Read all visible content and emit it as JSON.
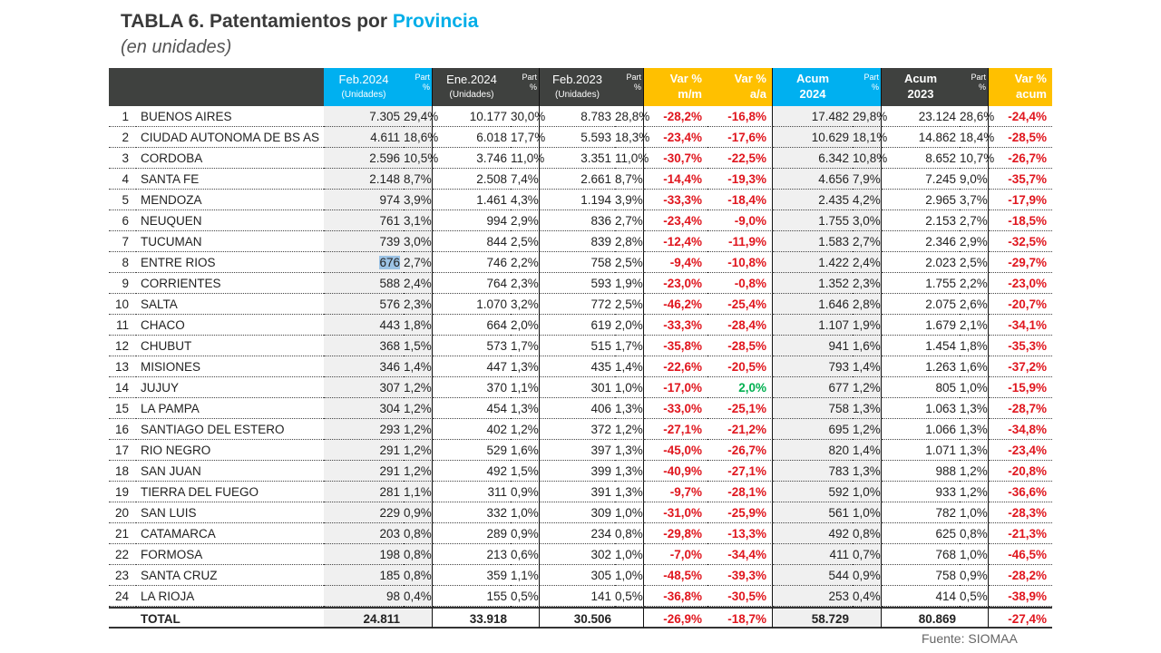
{
  "title": {
    "prefix": "TABLA 6. Patentamientos por ",
    "highlight": "Provincia"
  },
  "subtitle": "(en unidades)",
  "source": "Fuente: SIOMAA",
  "colors": {
    "blue": "#00b0f0",
    "orange": "#ffc000",
    "dark": "#3f413f",
    "negative": "#e0161e",
    "positive": "#00b050"
  },
  "headers": {
    "feb2024": "Feb.2024",
    "feb2024_sub": "(Unidades)",
    "ene2024": "Ene.2024",
    "ene2024_sub": "(Unidades)",
    "feb2023": "Feb.2023",
    "feb2023_sub": "(Unidades)",
    "part": "Part",
    "pct": "%",
    "var_mm_1": "Var %",
    "var_mm_2": "m/m",
    "var_aa_1": "Var %",
    "var_aa_2": "a/a",
    "acum2024_1": "Acum",
    "acum2024_2": "2024",
    "acum2023_1": "Acum",
    "acum2023_2": "2023",
    "var_acum_1": "Var %",
    "var_acum_2": "acum"
  },
  "rows": [
    [
      "1",
      "BUENOS AIRES",
      "7.305",
      "29,4%",
      "10.177",
      "30,0%",
      "8.783",
      "28,8%",
      "-28,2%",
      "-16,8%",
      "17.482",
      "29,8%",
      "23.124",
      "28,6%",
      "-24,4%"
    ],
    [
      "2",
      "CIUDAD AUTONOMA DE BS AS",
      "4.611",
      "18,6%",
      "6.018",
      "17,7%",
      "5.593",
      "18,3%",
      "-23,4%",
      "-17,6%",
      "10.629",
      "18,1%",
      "14.862",
      "18,4%",
      "-28,5%"
    ],
    [
      "3",
      "CORDOBA",
      "2.596",
      "10,5%",
      "3.746",
      "11,0%",
      "3.351",
      "11,0%",
      "-30,7%",
      "-22,5%",
      "6.342",
      "10,8%",
      "8.652",
      "10,7%",
      "-26,7%"
    ],
    [
      "4",
      "SANTA FE",
      "2.148",
      "8,7%",
      "2.508",
      "7,4%",
      "2.661",
      "8,7%",
      "-14,4%",
      "-19,3%",
      "4.656",
      "7,9%",
      "7.245",
      "9,0%",
      "-35,7%"
    ],
    [
      "5",
      "MENDOZA",
      "974",
      "3,9%",
      "1.461",
      "4,3%",
      "1.194",
      "3,9%",
      "-33,3%",
      "-18,4%",
      "2.435",
      "4,2%",
      "2.965",
      "3,7%",
      "-17,9%"
    ],
    [
      "6",
      "NEUQUEN",
      "761",
      "3,1%",
      "994",
      "2,9%",
      "836",
      "2,7%",
      "-23,4%",
      "-9,0%",
      "1.755",
      "3,0%",
      "2.153",
      "2,7%",
      "-18,5%"
    ],
    [
      "7",
      "TUCUMAN",
      "739",
      "3,0%",
      "844",
      "2,5%",
      "839",
      "2,8%",
      "-12,4%",
      "-11,9%",
      "1.583",
      "2,7%",
      "2.346",
      "2,9%",
      "-32,5%"
    ],
    [
      "8",
      "ENTRE RIOS",
      "676",
      "2,7%",
      "746",
      "2,2%",
      "758",
      "2,5%",
      "-9,4%",
      "-10,8%",
      "1.422",
      "2,4%",
      "2.023",
      "2,5%",
      "-29,7%"
    ],
    [
      "9",
      "CORRIENTES",
      "588",
      "2,4%",
      "764",
      "2,3%",
      "593",
      "1,9%",
      "-23,0%",
      "-0,8%",
      "1.352",
      "2,3%",
      "1.755",
      "2,2%",
      "-23,0%"
    ],
    [
      "10",
      "SALTA",
      "576",
      "2,3%",
      "1.070",
      "3,2%",
      "772",
      "2,5%",
      "-46,2%",
      "-25,4%",
      "1.646",
      "2,8%",
      "2.075",
      "2,6%",
      "-20,7%"
    ],
    [
      "11",
      "CHACO",
      "443",
      "1,8%",
      "664",
      "2,0%",
      "619",
      "2,0%",
      "-33,3%",
      "-28,4%",
      "1.107",
      "1,9%",
      "1.679",
      "2,1%",
      "-34,1%"
    ],
    [
      "12",
      "CHUBUT",
      "368",
      "1,5%",
      "573",
      "1,7%",
      "515",
      "1,7%",
      "-35,8%",
      "-28,5%",
      "941",
      "1,6%",
      "1.454",
      "1,8%",
      "-35,3%"
    ],
    [
      "13",
      "MISIONES",
      "346",
      "1,4%",
      "447",
      "1,3%",
      "435",
      "1,4%",
      "-22,6%",
      "-20,5%",
      "793",
      "1,4%",
      "1.263",
      "1,6%",
      "-37,2%"
    ],
    [
      "14",
      "JUJUY",
      "307",
      "1,2%",
      "370",
      "1,1%",
      "301",
      "1,0%",
      "-17,0%",
      "2,0%",
      "677",
      "1,2%",
      "805",
      "1,0%",
      "-15,9%"
    ],
    [
      "15",
      "LA PAMPA",
      "304",
      "1,2%",
      "454",
      "1,3%",
      "406",
      "1,3%",
      "-33,0%",
      "-25,1%",
      "758",
      "1,3%",
      "1.063",
      "1,3%",
      "-28,7%"
    ],
    [
      "16",
      "SANTIAGO DEL ESTERO",
      "293",
      "1,2%",
      "402",
      "1,2%",
      "372",
      "1,2%",
      "-27,1%",
      "-21,2%",
      "695",
      "1,2%",
      "1.066",
      "1,3%",
      "-34,8%"
    ],
    [
      "17",
      "RIO NEGRO",
      "291",
      "1,2%",
      "529",
      "1,6%",
      "397",
      "1,3%",
      "-45,0%",
      "-26,7%",
      "820",
      "1,4%",
      "1.071",
      "1,3%",
      "-23,4%"
    ],
    [
      "18",
      "SAN JUAN",
      "291",
      "1,2%",
      "492",
      "1,5%",
      "399",
      "1,3%",
      "-40,9%",
      "-27,1%",
      "783",
      "1,3%",
      "988",
      "1,2%",
      "-20,8%"
    ],
    [
      "19",
      "TIERRA DEL FUEGO",
      "281",
      "1,1%",
      "311",
      "0,9%",
      "391",
      "1,3%",
      "-9,7%",
      "-28,1%",
      "592",
      "1,0%",
      "933",
      "1,2%",
      "-36,6%"
    ],
    [
      "20",
      "SAN LUIS",
      "229",
      "0,9%",
      "332",
      "1,0%",
      "309",
      "1,0%",
      "-31,0%",
      "-25,9%",
      "561",
      "1,0%",
      "782",
      "1,0%",
      "-28,3%"
    ],
    [
      "21",
      "CATAMARCA",
      "203",
      "0,8%",
      "289",
      "0,9%",
      "234",
      "0,8%",
      "-29,8%",
      "-13,3%",
      "492",
      "0,8%",
      "625",
      "0,8%",
      "-21,3%"
    ],
    [
      "22",
      "FORMOSA",
      "198",
      "0,8%",
      "213",
      "0,6%",
      "302",
      "1,0%",
      "-7,0%",
      "-34,4%",
      "411",
      "0,7%",
      "768",
      "1,0%",
      "-46,5%"
    ],
    [
      "23",
      "SANTA CRUZ",
      "185",
      "0,8%",
      "359",
      "1,1%",
      "305",
      "1,0%",
      "-48,5%",
      "-39,3%",
      "544",
      "0,9%",
      "758",
      "0,9%",
      "-28,2%"
    ],
    [
      "24",
      "LA RIOJA",
      "98",
      "0,4%",
      "155",
      "0,5%",
      "141",
      "0,5%",
      "-36,8%",
      "-30,5%",
      "253",
      "0,4%",
      "414",
      "0,5%",
      "-38,9%"
    ]
  ],
  "total": {
    "label": "TOTAL",
    "feb2024": "24.811",
    "ene2024": "33.918",
    "feb2023": "30.506",
    "var_mm": "-26,9%",
    "var_aa": "-18,7%",
    "acum2024": "58.729",
    "acum2023": "80.869",
    "var_acum": "-27,4%"
  }
}
